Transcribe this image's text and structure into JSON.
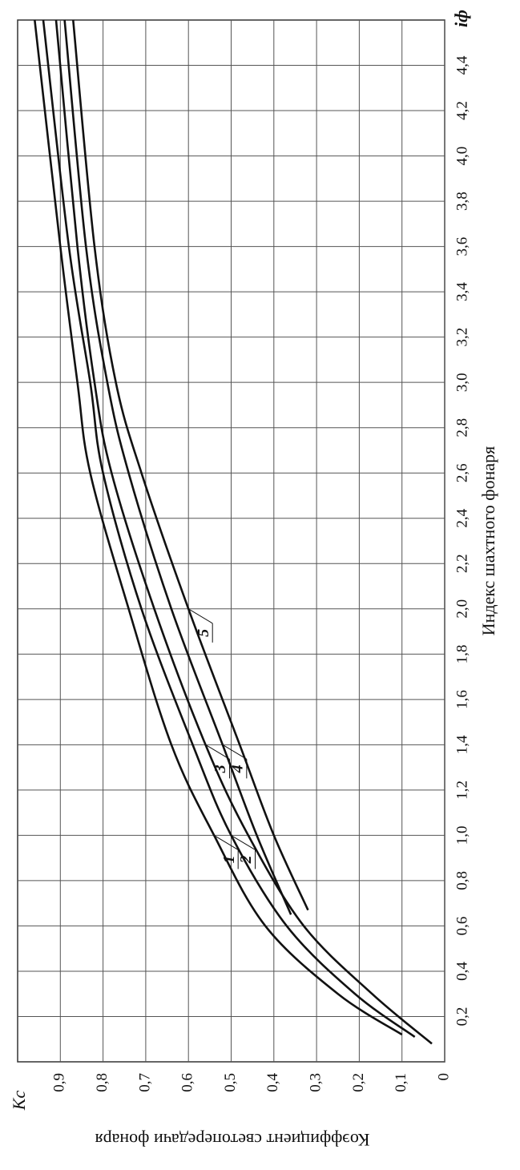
{
  "chart_data": {
    "type": "line",
    "x_label": "Индекс шахтного фонаря",
    "y_label": "Коэффициент светопередачи фонаря",
    "x_symbol": "iф",
    "y_symbol": "Kс",
    "xlim": [
      0,
      4.6
    ],
    "ylim": [
      0,
      1.0
    ],
    "grid": true,
    "color": "#111111",
    "xticks": [
      {
        "value": 0.2,
        "label": "0,2"
      },
      {
        "value": 0.4,
        "label": "0,4"
      },
      {
        "value": 0.6,
        "label": "0,6"
      },
      {
        "value": 0.8,
        "label": "0,8"
      },
      {
        "value": 1.0,
        "label": "1,0"
      },
      {
        "value": 1.2,
        "label": "1,2"
      },
      {
        "value": 1.4,
        "label": "1,4"
      },
      {
        "value": 1.6,
        "label": "1,6"
      },
      {
        "value": 1.8,
        "label": "1,8"
      },
      {
        "value": 2.0,
        "label": "2,0"
      },
      {
        "value": 2.2,
        "label": "2,2"
      },
      {
        "value": 2.4,
        "label": "2,4"
      },
      {
        "value": 2.6,
        "label": "2,6"
      },
      {
        "value": 2.8,
        "label": "2,8"
      },
      {
        "value": 3.0,
        "label": "3,0"
      },
      {
        "value": 3.2,
        "label": "3,2"
      },
      {
        "value": 3.4,
        "label": "3,4"
      },
      {
        "value": 3.6,
        "label": "3,6"
      },
      {
        "value": 3.8,
        "label": "3,8"
      },
      {
        "value": 4.0,
        "label": "4,0"
      },
      {
        "value": 4.2,
        "label": "4,2"
      },
      {
        "value": 4.4,
        "label": "4,4"
      }
    ],
    "yticks": [
      0,
      {
        "value": 0.1,
        "label": "0,1"
      },
      {
        "value": 0.2,
        "label": "0,2"
      },
      {
        "value": 0.3,
        "label": "0,3"
      },
      {
        "value": 0.4,
        "label": "0,4"
      },
      {
        "value": 0.5,
        "label": "0,5"
      },
      {
        "value": 0.6,
        "label": "0,6"
      },
      {
        "value": 0.7,
        "label": "0,7"
      },
      {
        "value": 0.8,
        "label": "0,8"
      },
      {
        "value": 0.9,
        "label": "0,9"
      }
    ],
    "series": [
      {
        "name": "1",
        "x": [
          0.12,
          0.3,
          0.6,
          1.0,
          1.4,
          2.0,
          2.6,
          3.0,
          3.6,
          4.6
        ],
        "values": [
          0.1,
          0.25,
          0.42,
          0.54,
          0.64,
          0.74,
          0.83,
          0.86,
          0.9,
          0.96
        ]
      },
      {
        "name": "2",
        "x": [
          0.11,
          0.3,
          0.6,
          1.0,
          1.4,
          2.0,
          2.6,
          3.0,
          3.6,
          4.6
        ],
        "values": [
          0.07,
          0.21,
          0.37,
          0.5,
          0.59,
          0.71,
          0.8,
          0.83,
          0.88,
          0.94
        ]
      },
      {
        "name": "3",
        "x": [
          0.08,
          0.3,
          0.6,
          1.0,
          1.4,
          2.0,
          2.6,
          3.0,
          3.6,
          4.6
        ],
        "values": [
          0.03,
          0.17,
          0.33,
          0.46,
          0.56,
          0.68,
          0.78,
          0.82,
          0.86,
          0.91
        ]
      },
      {
        "name": "4",
        "x": [
          0.65,
          1.0,
          1.4,
          2.0,
          2.6,
          3.0,
          3.6,
          4.6
        ],
        "values": [
          0.36,
          0.44,
          0.52,
          0.64,
          0.74,
          0.79,
          0.84,
          0.89
        ]
      },
      {
        "name": "5",
        "x": [
          0.67,
          1.0,
          1.4,
          2.0,
          2.6,
          3.0,
          3.6,
          4.6
        ],
        "values": [
          0.32,
          0.4,
          0.48,
          0.6,
          0.71,
          0.77,
          0.82,
          0.87
        ]
      }
    ]
  }
}
